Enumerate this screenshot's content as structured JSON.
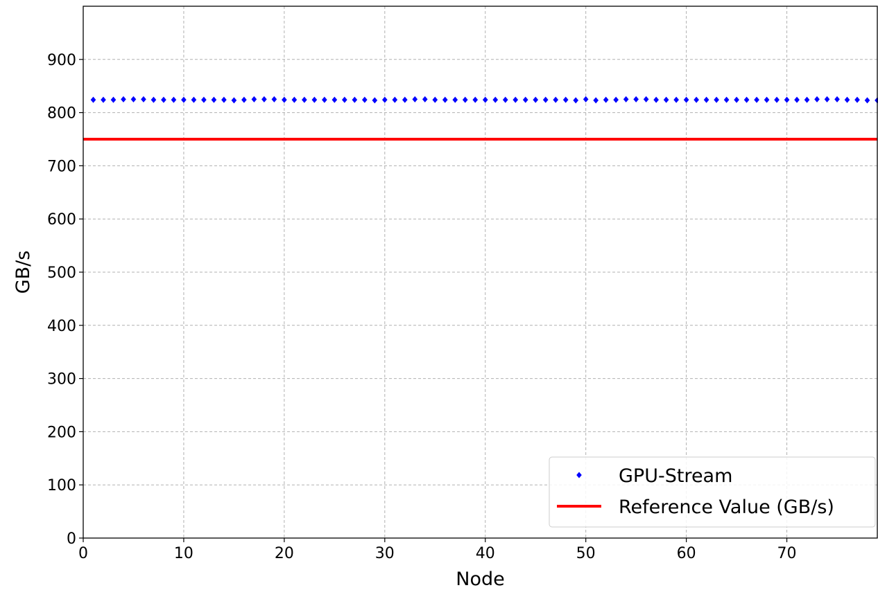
{
  "chart_data": {
    "type": "scatter",
    "xlabel": "Node",
    "ylabel": "GB/s",
    "xlim": [
      0,
      79
    ],
    "ylim": [
      0,
      1000
    ],
    "xticks": [
      0,
      10,
      20,
      30,
      40,
      50,
      60,
      70
    ],
    "yticks": [
      0,
      100,
      200,
      300,
      400,
      500,
      600,
      700,
      800,
      900
    ],
    "grid": true,
    "legend_position": "bottom-right",
    "series": [
      {
        "name": "GPU-Stream",
        "kind": "scatter",
        "color": "#0000ff",
        "x": [
          1,
          2,
          3,
          4,
          5,
          6,
          7,
          8,
          9,
          10,
          11,
          12,
          13,
          14,
          15,
          16,
          17,
          18,
          19,
          20,
          21,
          22,
          23,
          24,
          25,
          26,
          27,
          28,
          29,
          30,
          31,
          32,
          33,
          34,
          35,
          36,
          37,
          38,
          39,
          40,
          41,
          42,
          43,
          44,
          45,
          46,
          47,
          48,
          49,
          50,
          51,
          52,
          53,
          54,
          55,
          56,
          57,
          58,
          59,
          60,
          61,
          62,
          63,
          64,
          65,
          66,
          67,
          68,
          69,
          70,
          71,
          72,
          73,
          74,
          75,
          76,
          77,
          78,
          79
        ],
        "y": [
          824,
          824,
          824,
          825,
          825,
          825,
          824,
          824,
          824,
          824,
          824,
          824,
          824,
          824,
          823,
          824,
          825,
          825,
          825,
          824,
          824,
          824,
          824,
          824,
          824,
          824,
          824,
          824,
          823,
          824,
          824,
          824,
          825,
          825,
          824,
          824,
          824,
          824,
          824,
          824,
          824,
          824,
          824,
          824,
          824,
          824,
          824,
          824,
          823,
          825,
          823,
          824,
          824,
          825,
          825,
          825,
          824,
          824,
          824,
          824,
          824,
          824,
          824,
          824,
          824,
          824,
          824,
          824,
          824,
          824,
          824,
          824,
          825,
          825,
          825,
          824,
          824,
          823,
          823
        ]
      },
      {
        "name": "Reference Value (GB/s)",
        "kind": "hline",
        "color": "#ff0000",
        "y": 750
      }
    ]
  }
}
